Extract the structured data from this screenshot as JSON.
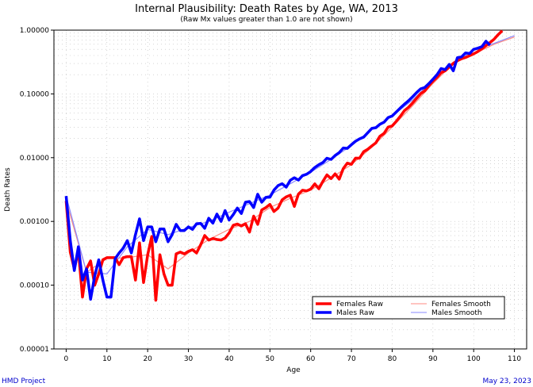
{
  "chart_data": {
    "type": "line",
    "title": "Internal Plausibility: Death Rates by Age, WA, 2013",
    "subtitle": "(Raw Mx values greater than 1.0 are not shown)",
    "xlabel": "Age",
    "ylabel": "Death Rates",
    "xlim": [
      -3,
      113
    ],
    "ylim": [
      1e-05,
      1.0
    ],
    "yscale": "log",
    "x_ticks": [
      0,
      10,
      20,
      30,
      40,
      50,
      60,
      70,
      80,
      90,
      100,
      110
    ],
    "y_ticks": [
      1e-05,
      0.0001,
      0.001,
      0.01,
      0.1,
      1.0
    ],
    "y_tick_labels": [
      "0.00001",
      "0.00010",
      "0.00100",
      "0.01000",
      "0.10000",
      "1.00000"
    ],
    "grid": true,
    "legend_position": "lower-right",
    "series": [
      {
        "name": "Females Raw",
        "color": "#ff0000",
        "style": "thick",
        "x": [
          0,
          1,
          2,
          3,
          4,
          5,
          6,
          7,
          8,
          9,
          10,
          11,
          12,
          13,
          14,
          15,
          16,
          17,
          18,
          19,
          20,
          21,
          22,
          23,
          24,
          25,
          26,
          27,
          28,
          29,
          30,
          31,
          32,
          33,
          34,
          35,
          36,
          37,
          38,
          39,
          40,
          41,
          42,
          43,
          44,
          45,
          46,
          47,
          48,
          49,
          50,
          51,
          52,
          53,
          54,
          55,
          56,
          57,
          58,
          59,
          60,
          61,
          62,
          63,
          64,
          65,
          66,
          67,
          68,
          69,
          70,
          71,
          72,
          73,
          74,
          75,
          76,
          77,
          78,
          79,
          80,
          81,
          82,
          83,
          84,
          85,
          86,
          87,
          88,
          89,
          90,
          91,
          92,
          93,
          94,
          95,
          96,
          97,
          98,
          99,
          100,
          101,
          102,
          103,
          104,
          105,
          106,
          107
        ],
        "y": [
          0.0021,
          0.00033,
          0.00018,
          0.00035,
          6.5e-05,
          0.00018,
          0.00024,
          0.0001,
          0.00015,
          0.00025,
          0.00027,
          0.00027,
          0.00027,
          0.00021,
          0.00027,
          0.00028,
          0.00028,
          0.00012,
          0.00046,
          0.00011,
          0.0003,
          0.00058,
          5.8e-05,
          0.0003,
          0.00015,
          0.0001,
          0.0001,
          0.00031,
          0.00033,
          0.00031,
          0.00034,
          0.00036,
          0.00032,
          0.00043,
          0.0006,
          0.00051,
          0.00054,
          0.00052,
          0.00051,
          0.00055,
          0.00066,
          0.00087,
          0.00091,
          0.00085,
          0.00092,
          0.00068,
          0.00121,
          0.0009,
          0.00151,
          0.00165,
          0.00185,
          0.00143,
          0.00162,
          0.00218,
          0.00243,
          0.00258,
          0.00172,
          0.00269,
          0.00308,
          0.00301,
          0.00321,
          0.00388,
          0.00325,
          0.00425,
          0.00537,
          0.00469,
          0.00558,
          0.0046,
          0.00675,
          0.00821,
          0.00786,
          0.00983,
          0.00981,
          0.0124,
          0.01354,
          0.01529,
          0.01706,
          0.02164,
          0.02401,
          0.03009,
          0.0314,
          0.03708,
          0.04462,
          0.05461,
          0.06169,
          0.07188,
          0.08554,
          0.1008,
          0.1119,
          0.1349,
          0.158,
          0.1821,
          0.2156,
          0.2299,
          0.2629,
          0.3012,
          0.331,
          0.356,
          0.372,
          0.398,
          0.425,
          0.46,
          0.51,
          0.57,
          0.64,
          0.72,
          0.85,
          0.98
        ]
      },
      {
        "name": "Males Raw",
        "color": "#0000ff",
        "style": "thick",
        "x": [
          0,
          1,
          2,
          3,
          4,
          5,
          6,
          7,
          8,
          9,
          10,
          11,
          12,
          13,
          14,
          15,
          16,
          17,
          18,
          19,
          20,
          21,
          22,
          23,
          24,
          25,
          26,
          27,
          28,
          29,
          30,
          31,
          32,
          33,
          34,
          35,
          36,
          37,
          38,
          39,
          40,
          41,
          42,
          43,
          44,
          45,
          46,
          47,
          48,
          49,
          50,
          51,
          52,
          53,
          54,
          55,
          56,
          57,
          58,
          59,
          60,
          61,
          62,
          63,
          64,
          65,
          66,
          67,
          68,
          69,
          70,
          71,
          72,
          73,
          74,
          75,
          76,
          77,
          78,
          79,
          80,
          81,
          82,
          83,
          84,
          85,
          86,
          87,
          88,
          89,
          90,
          91,
          92,
          93,
          94,
          95,
          96,
          97,
          98,
          99,
          100,
          101,
          102,
          103,
          104
        ],
        "y": [
          0.0025,
          0.0005,
          0.00017,
          0.0004,
          0.00012,
          0.00018,
          6e-05,
          0.00014,
          0.00025,
          0.00012,
          6.5e-05,
          6.5e-05,
          0.00026,
          0.00032,
          0.00038,
          0.0005,
          0.00032,
          0.00062,
          0.0011,
          0.0005,
          0.00082,
          0.00082,
          0.00048,
          0.00076,
          0.00076,
          0.00048,
          0.00062,
          0.0009,
          0.00072,
          0.00072,
          0.00082,
          0.00075,
          0.00092,
          0.00093,
          0.00078,
          0.00112,
          0.00094,
          0.0013,
          0.001,
          0.00148,
          0.00105,
          0.00128,
          0.00162,
          0.00133,
          0.002,
          0.00205,
          0.00165,
          0.00267,
          0.002,
          0.00238,
          0.0024,
          0.0031,
          0.00365,
          0.0039,
          0.00345,
          0.00442,
          0.00484,
          0.00445,
          0.00523,
          0.0055,
          0.00605,
          0.007,
          0.00775,
          0.0084,
          0.0098,
          0.0094,
          0.0108,
          0.012,
          0.0142,
          0.014,
          0.016,
          0.0181,
          0.0197,
          0.021,
          0.0246,
          0.0288,
          0.0295,
          0.0334,
          0.036,
          0.0425,
          0.045,
          0.052,
          0.06,
          0.069,
          0.078,
          0.09,
          0.105,
          0.12,
          0.126,
          0.145,
          0.17,
          0.2,
          0.25,
          0.24,
          0.29,
          0.23,
          0.37,
          0.38,
          0.44,
          0.43,
          0.5,
          0.52,
          0.55,
          0.67,
          0.58
        ]
      },
      {
        "name": "Females Smooth",
        "color": "#ff8a80",
        "style": "thin",
        "x": [
          0,
          5,
          10,
          15,
          20,
          25,
          30,
          35,
          40,
          45,
          50,
          55,
          60,
          65,
          70,
          75,
          80,
          85,
          90,
          95,
          100,
          105,
          110
        ],
        "y": [
          0.0021,
          0.00016,
          0.00026,
          0.00027,
          0.0003,
          0.00018,
          0.00032,
          0.00052,
          0.00075,
          0.001,
          0.00165,
          0.0023,
          0.0031,
          0.0048,
          0.0078,
          0.0145,
          0.03,
          0.065,
          0.145,
          0.3,
          0.42,
          0.6,
          0.78
        ]
      },
      {
        "name": "Males Smooth",
        "color": "#8a8aff",
        "style": "thin",
        "x": [
          0,
          5,
          10,
          15,
          20,
          25,
          30,
          35,
          40,
          45,
          50,
          55,
          60,
          65,
          70,
          75,
          80,
          85,
          90,
          95,
          100,
          105,
          110
        ],
        "y": [
          0.0025,
          0.00016,
          0.00015,
          0.0004,
          0.00075,
          0.00062,
          0.0008,
          0.001,
          0.0014,
          0.0019,
          0.0026,
          0.0039,
          0.0059,
          0.0094,
          0.0155,
          0.028,
          0.045,
          0.08,
          0.165,
          0.3,
          0.48,
          0.62,
          0.82
        ]
      }
    ]
  },
  "footer": {
    "left": "HMD Project",
    "right": "May 23, 2023"
  }
}
